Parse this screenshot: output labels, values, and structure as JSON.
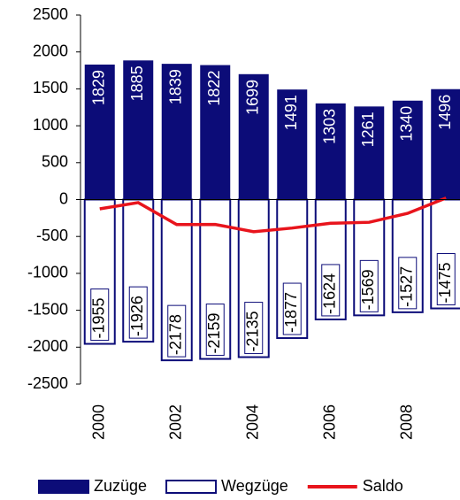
{
  "chart_data": {
    "type": "bar",
    "categories": [
      "2000",
      null,
      "2002",
      null,
      "2004",
      null,
      "2006",
      null,
      "2008",
      null
    ],
    "series": [
      {
        "name": "Zuzüge",
        "color": "#0c0c78",
        "values": [
          1829,
          1885,
          1839,
          1822,
          1699,
          1491,
          1303,
          1261,
          1340,
          1496
        ]
      },
      {
        "name": "Wegzüge",
        "color": "#ffffff",
        "border": "#0c0c78",
        "values": [
          -1955,
          -1926,
          -2178,
          -2159,
          -2135,
          -1877,
          -1624,
          -1569,
          -1527,
          -1475
        ]
      },
      {
        "name": "Saldo",
        "type": "line",
        "color": "#e8141c",
        "values": [
          -126,
          -41,
          -339,
          -337,
          -436,
          -386,
          -321,
          -308,
          -187,
          21
        ]
      }
    ],
    "ylim": [
      -2500,
      2500
    ],
    "yticks": [
      2500,
      2000,
      1500,
      1000,
      500,
      0,
      -500,
      -1000,
      -1500,
      -2000,
      -2500
    ],
    "legend": "bottom"
  }
}
